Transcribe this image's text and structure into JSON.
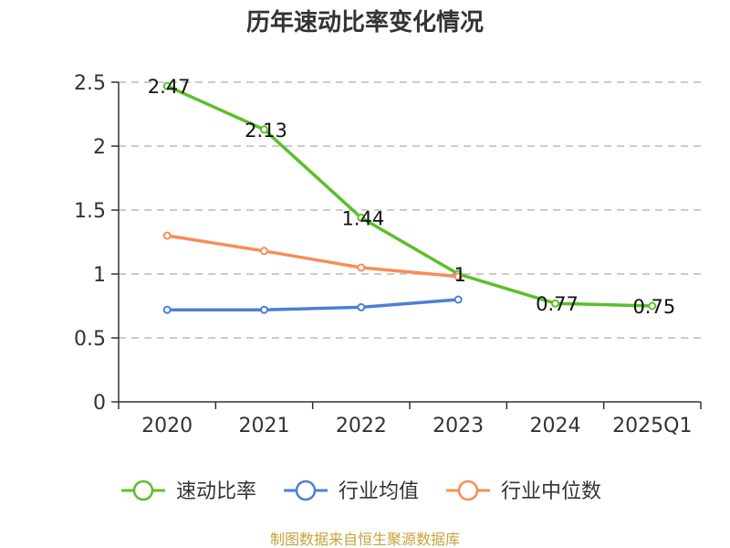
{
  "chart_data": {
    "type": "line",
    "title": "历年速动比率变化情况",
    "categories": [
      "2020",
      "2021",
      "2022",
      "2023",
      "2024",
      "2025Q1"
    ],
    "ylim": [
      0,
      2.5
    ],
    "yticks": [
      "0",
      "0.5",
      "1",
      "1.5",
      "2",
      "2.5"
    ],
    "grid": true,
    "legend_position": "bottom",
    "series": [
      {
        "name": "速动比率",
        "color": "#5cbf2a",
        "values": [
          2.47,
          2.13,
          1.44,
          1.0,
          0.77,
          0.75
        ],
        "labels": [
          "2.47",
          "2.13",
          "1.44",
          "1",
          "0.77",
          "0.75"
        ]
      },
      {
        "name": "行业均值",
        "color": "#4e7fd6",
        "values": [
          0.72,
          0.72,
          0.74,
          0.8,
          null,
          null
        ]
      },
      {
        "name": "行业中位数",
        "color": "#f58e5a",
        "values": [
          1.3,
          1.18,
          1.05,
          0.98,
          null,
          null
        ]
      }
    ]
  },
  "source": "制图数据来自恒生聚源数据库"
}
